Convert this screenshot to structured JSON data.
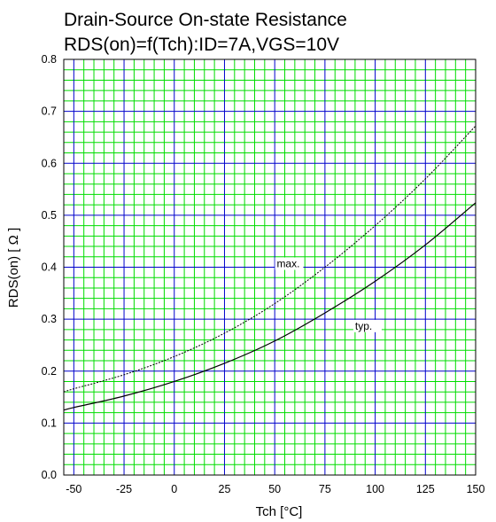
{
  "chart_data": {
    "type": "line",
    "title": "Drain-Source On-state Resistance",
    "subtitle": "RDS(on)=f(Tch):ID=7A,VGS=10V",
    "xlabel": "Tch [°C]",
    "ylabel": "RDS(on) [ Ω ]",
    "xlim": [
      -55,
      150
    ],
    "ylim": [
      0,
      0.8
    ],
    "x_ticks": [
      "-50",
      "-25",
      "0",
      "25",
      "50",
      "75",
      "100",
      "125",
      "150"
    ],
    "y_ticks": [
      "0.0",
      "0.1",
      "0.2",
      "0.3",
      "0.4",
      "0.5",
      "0.6",
      "0.7",
      "0.8"
    ],
    "grid": true,
    "colors": {
      "major_grid": "#0000cc",
      "minor_grid": "#00dd00",
      "frame": "#000000"
    },
    "series": [
      {
        "name": "typ.",
        "style": "solid",
        "x": [
          -55,
          -50,
          -25,
          0,
          25,
          50,
          75,
          100,
          125,
          150
        ],
        "y": [
          0.125,
          0.13,
          0.152,
          0.18,
          0.215,
          0.258,
          0.312,
          0.373,
          0.443,
          0.524
        ]
      },
      {
        "name": "max.",
        "style": "dotted",
        "x": [
          -55,
          -50,
          -25,
          0,
          25,
          50,
          75,
          100,
          125,
          150
        ],
        "y": [
          0.16,
          0.166,
          0.193,
          0.228,
          0.273,
          0.33,
          0.4,
          0.48,
          0.57,
          0.672
        ]
      }
    ],
    "annotations": [
      {
        "text": "max.",
        "x": 51,
        "y": 0.4
      },
      {
        "text": "typ.",
        "x": 90,
        "y": 0.28
      }
    ]
  }
}
